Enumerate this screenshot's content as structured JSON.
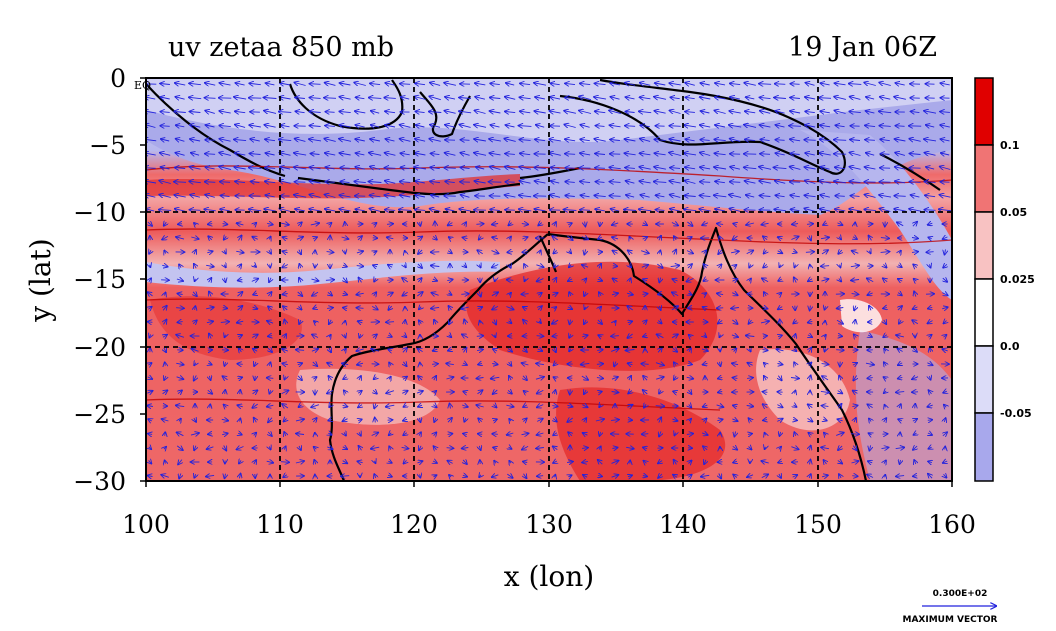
{
  "plot": {
    "title_left": "uv zetaa 850 mb",
    "title_right": "19 Jan 06Z",
    "xlabel": "x (lon)",
    "ylabel": "y (lat)",
    "eq_label": "EQ",
    "max_vector_value": "0.300E+02",
    "max_vector_label": "MAXIMUM VECTOR"
  },
  "chart_data": {
    "type": "heatmap",
    "title": "uv zetaa 850 mb",
    "subtitle": "19 Jan 06Z",
    "xlabel": "x (lon)",
    "ylabel": "y (lat)",
    "xlim": [
      100,
      160
    ],
    "ylim": [
      -30,
      0
    ],
    "x_ticks": [
      100,
      110,
      120,
      130,
      140,
      150,
      160
    ],
    "y_ticks": [
      0,
      -5,
      -10,
      -15,
      -20,
      -25,
      -30
    ],
    "x_tick_labels": [
      "100",
      "110",
      "120",
      "130",
      "140",
      "150",
      "160"
    ],
    "y_tick_labels": [
      "0",
      "−5",
      "−10",
      "−15",
      "−20",
      "−25",
      "−30"
    ],
    "gridlines_x": [
      110,
      120,
      130,
      140,
      150
    ],
    "gridlines_y": [
      -10,
      -20
    ],
    "colorbar": {
      "levels": [
        {
          "label": "",
          "color": "#e00000"
        },
        {
          "label": "0.1",
          "color": "#f07474"
        },
        {
          "label": "0.05",
          "color": "#f8c2c2"
        },
        {
          "label": "0.025",
          "color": "#ffffff"
        },
        {
          "label": "0.0",
          "color": "#dcdcf8"
        },
        {
          "label": "-0.05",
          "color": "#a8a8ec"
        }
      ]
    },
    "fill_colors": {
      "strong_positive": "#e81e1e",
      "positive": "#f07070",
      "weak_positive": "#f6b8b8",
      "neutral": "#ffffff",
      "weak_negative": "#dcdcf6",
      "negative": "#aaaaea",
      "vectors": "#2222dd"
    }
  }
}
